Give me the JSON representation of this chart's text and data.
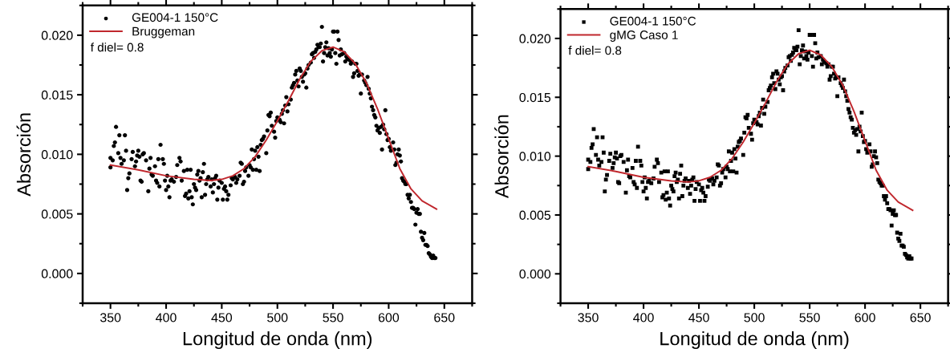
{
  "chart_data": [
    {
      "type": "scatter",
      "xlabel": "Longitud de onda (nm)",
      "ylabel": "Absorción",
      "legend": "top left",
      "grid": false,
      "xlim": [
        325,
        675
      ],
      "ylim": [
        -0.0025,
        0.0225
      ],
      "xticks": [
        {
          "value": 325,
          "label": null
        },
        350,
        {
          "value": 375,
          "label": null
        },
        400,
        {
          "value": 425,
          "label": null
        },
        450,
        {
          "value": 475,
          "label": null
        },
        500,
        {
          "value": 525,
          "label": null
        },
        550,
        {
          "value": 575,
          "label": null
        },
        600,
        {
          "value": 625,
          "label": null
        },
        650,
        {
          "value": 675,
          "label": null
        }
      ],
      "yticks": [
        {
          "value": -0.0025,
          "label": null
        },
        {
          "value": 0.0,
          "label": "0.000"
        },
        {
          "value": 0.0025,
          "label": null
        },
        {
          "value": 0.005,
          "label": "0.005"
        },
        {
          "value": 0.0075,
          "label": null
        },
        {
          "value": 0.01,
          "label": "0.010"
        },
        {
          "value": 0.0125,
          "label": null
        },
        {
          "value": 0.015,
          "label": "0.015"
        },
        {
          "value": 0.0175,
          "label": null
        },
        {
          "value": 0.02,
          "label": "0.020"
        },
        {
          "value": 0.0225,
          "label": null
        }
      ],
      "annotations": [
        "f diel= 0.8"
      ],
      "series": [
        {
          "name": "GE004-1 150°C",
          "marker": "circle",
          "color": "#000000",
          "x": [
            350,
            350,
            352,
            353,
            354,
            355,
            357,
            358,
            359,
            360,
            362,
            363,
            364,
            365,
            366,
            367,
            369,
            370,
            372,
            373,
            374,
            375,
            376,
            377,
            378,
            379,
            380,
            382,
            384,
            385,
            386,
            387,
            388,
            390,
            391,
            392,
            393,
            394,
            395,
            397,
            398,
            399,
            400,
            401,
            402,
            403,
            404,
            405,
            407,
            409,
            410,
            412,
            413,
            414,
            416,
            417,
            418,
            419,
            420,
            421,
            422,
            423,
            424,
            425,
            426,
            427,
            428,
            429,
            430,
            431,
            432,
            433,
            434,
            435,
            436,
            437,
            438,
            440,
            441,
            442,
            443,
            444,
            445,
            446,
            447,
            448,
            450,
            451,
            452,
            453,
            454,
            455,
            456,
            458,
            459,
            460,
            462,
            463,
            464,
            466,
            467,
            468,
            469,
            470,
            471,
            472,
            474,
            475,
            476,
            477,
            478,
            479,
            480,
            481,
            482,
            483,
            484,
            485,
            486,
            487,
            488,
            490,
            491,
            492,
            493,
            494,
            495,
            497,
            498,
            499,
            500,
            502,
            503,
            504,
            505,
            506,
            507,
            508,
            509,
            510,
            512,
            513,
            514,
            515,
            516,
            517,
            518,
            519,
            520,
            521,
            522,
            523,
            524,
            525,
            526,
            527,
            528,
            530,
            531,
            532,
            533,
            534,
            535,
            536,
            537,
            538,
            539,
            540,
            541,
            542,
            543,
            544,
            545,
            546,
            547,
            548,
            549,
            550,
            551,
            552,
            553,
            554,
            555,
            556,
            557,
            558,
            560,
            561,
            562,
            563,
            565,
            566,
            567,
            568,
            569,
            570,
            571,
            572,
            573,
            574,
            575,
            576,
            578,
            579,
            580,
            581,
            582,
            583,
            584,
            585,
            586,
            587,
            588,
            589,
            590,
            591,
            592,
            593,
            594,
            595,
            596,
            597,
            598,
            599,
            600,
            601,
            602,
            604,
            605,
            606,
            607,
            608,
            609,
            610,
            611,
            612,
            613,
            614,
            615,
            616,
            617,
            618,
            619,
            620,
            621,
            622,
            623,
            624,
            625,
            626,
            627,
            628,
            629,
            630,
            631,
            632,
            633,
            634,
            635,
            636,
            637,
            638,
            639,
            640,
            641,
            642
          ],
          "values": [
            0.0097,
            0.0089,
            0.0095,
            0.0107,
            0.011,
            0.0123,
            0.0101,
            0.0116,
            0.0097,
            0.0092,
            0.0095,
            0.0116,
            0.0103,
            0.007,
            0.008,
            0.0084,
            0.0096,
            0.0102,
            0.009,
            0.0094,
            0.0099,
            0.0103,
            0.0098,
            0.0078,
            0.0077,
            0.01,
            0.0101,
            0.0095,
            0.0069,
            0.0088,
            0.0097,
            0.0083,
            0.0082,
            0.009,
            0.0078,
            0.0076,
            0.0096,
            0.0073,
            0.0108,
            0.0096,
            0.0092,
            0.0078,
            0.007,
            0.0082,
            0.0073,
            0.0064,
            0.0078,
            0.0079,
            0.0077,
            0.0081,
            0.0091,
            0.0097,
            0.0094,
            0.0078,
            0.0086,
            0.0065,
            0.0067,
            0.0087,
            0.0063,
            0.0069,
            0.0087,
            0.0064,
            0.0058,
            0.0075,
            0.0072,
            0.007,
            0.0083,
            0.0086,
            0.0078,
            0.008,
            0.0064,
            0.0085,
            0.0092,
            0.0066,
            0.0075,
            0.0079,
            0.0081,
            0.0073,
            0.0079,
            0.0068,
            0.0075,
            0.008,
            0.0082,
            0.0062,
            0.0072,
            0.0078,
            0.0076,
            0.0062,
            0.0071,
            0.0073,
            0.0069,
            0.0062,
            0.0066,
            0.0074,
            0.008,
            0.0079,
            0.0081,
            0.0076,
            0.0079,
            0.0082,
            0.0093,
            0.0092,
            0.0075,
            0.0077,
            0.0086,
            0.0089,
            0.0082,
            0.0091,
            0.0089,
            0.0104,
            0.0087,
            0.0096,
            0.0103,
            0.0087,
            0.0106,
            0.0098,
            0.0086,
            0.0108,
            0.0112,
            0.0113,
            0.0115,
            0.0101,
            0.012,
            0.0133,
            0.0132,
            0.0135,
            0.0124,
            0.0119,
            0.0114,
            0.0128,
            0.0131,
            0.0129,
            0.0127,
            0.0134,
            0.0137,
            0.0126,
            0.0141,
            0.0148,
            0.0136,
            0.0142,
            0.0146,
            0.0156,
            0.0158,
            0.016,
            0.0167,
            0.017,
            0.0162,
            0.0157,
            0.0172,
            0.017,
            0.0165,
            0.0161,
            0.0167,
            0.0168,
            0.0156,
            0.0172,
            0.0175,
            0.0177,
            0.0184,
            0.0185,
            0.0181,
            0.0186,
            0.0188,
            0.0192,
            0.019,
            0.019,
            0.0193,
            0.0207,
            0.0178,
            0.0185,
            0.019,
            0.0194,
            0.0183,
            0.0189,
            0.0185,
            0.0182,
            0.0188,
            0.0203,
            0.0203,
            0.0185,
            0.0176,
            0.0203,
            0.0196,
            0.0183,
            0.0188,
            0.0184,
            0.0185,
            0.0178,
            0.0182,
            0.018,
            0.0179,
            0.0176,
            0.0178,
            0.0165,
            0.0168,
            0.0176,
            0.0176,
            0.017,
            0.0166,
            0.0167,
            0.0151,
            0.0167,
            0.0162,
            0.016,
            0.0158,
            0.0165,
            0.0155,
            0.0151,
            0.0147,
            0.014,
            0.0137,
            0.0133,
            0.0131,
            0.0124,
            0.012,
            0.0122,
            0.0118,
            0.0123,
            0.0104,
            0.0125,
            0.0121,
            0.0137,
            0.0117,
            0.0112,
            0.0113,
            0.0106,
            0.0103,
            0.011,
            0.0104,
            0.0091,
            0.0093,
            0.01,
            0.0104,
            0.0099,
            0.0094,
            0.008,
            0.0078,
            0.0077,
            0.0075,
            0.0075,
            0.0066,
            0.0063,
            0.0066,
            0.006,
            0.0055,
            0.0055,
            0.0054,
            0.0041,
            0.0051,
            0.0054,
            0.005,
            0.005,
            0.0035,
            0.003,
            0.0028,
            0.0034,
            0.0024,
            0.0024,
            0.0023,
            0.0017,
            0.0016,
            0.0014,
            0.0013,
            0.0015,
            0.0013,
            0.0013
          ]
        },
        {
          "name": "Bruggeman",
          "type": "line",
          "line_style": "solid",
          "color": "#c0272d",
          "x": [
            350,
            375,
            400,
            425,
            440,
            450,
            460,
            470,
            480,
            490,
            500,
            510,
            520,
            530,
            540,
            550,
            560,
            570,
            580,
            590,
            600,
            610,
            620,
            630,
            643
          ],
          "values": [
            0.0091,
            0.0087,
            0.0082,
            0.0079,
            0.0078,
            0.0079,
            0.0082,
            0.0088,
            0.0098,
            0.0112,
            0.0128,
            0.0145,
            0.0163,
            0.0178,
            0.0187,
            0.019,
            0.0186,
            0.0176,
            0.016,
            0.0138,
            0.0113,
            0.0088,
            0.0071,
            0.0061,
            0.0054
          ]
        }
      ]
    },
    {
      "type": "scatter",
      "xlabel": "Longitud de onda (nm)",
      "ylabel": "Absorción",
      "legend": "top left",
      "grid": false,
      "xlim": [
        325,
        675
      ],
      "ylim": [
        -0.0025,
        0.0225
      ],
      "xticks": [
        {
          "value": 325,
          "label": null
        },
        350,
        {
          "value": 375,
          "label": null
        },
        400,
        {
          "value": 425,
          "label": null
        },
        450,
        {
          "value": 475,
          "label": null
        },
        500,
        {
          "value": 525,
          "label": null
        },
        550,
        {
          "value": 575,
          "label": null
        },
        600,
        {
          "value": 625,
          "label": null
        },
        650,
        {
          "value": 675,
          "label": null
        }
      ],
      "yticks": [
        {
          "value": -0.0025,
          "label": null
        },
        {
          "value": 0.0,
          "label": "0.000"
        },
        {
          "value": 0.0025,
          "label": null
        },
        {
          "value": 0.005,
          "label": "0.005"
        },
        {
          "value": 0.0075,
          "label": null
        },
        {
          "value": 0.01,
          "label": "0.010"
        },
        {
          "value": 0.0125,
          "label": null
        },
        {
          "value": 0.015,
          "label": "0.015"
        },
        {
          "value": 0.0175,
          "label": null
        },
        {
          "value": 0.02,
          "label": "0.020"
        },
        {
          "value": 0.0225,
          "label": null
        }
      ],
      "annotations": [
        "f diel= 0.8"
      ],
      "series": [
        {
          "name": "GE004-1 150°C",
          "marker": "square",
          "color": "#000000",
          "x": [
            350,
            350,
            352,
            353,
            354,
            355,
            357,
            358,
            359,
            360,
            362,
            363,
            364,
            365,
            366,
            367,
            369,
            370,
            372,
            373,
            374,
            375,
            376,
            377,
            378,
            379,
            380,
            382,
            384,
            385,
            386,
            387,
            388,
            390,
            391,
            392,
            393,
            394,
            395,
            397,
            398,
            399,
            400,
            401,
            402,
            403,
            404,
            405,
            407,
            409,
            410,
            412,
            413,
            414,
            416,
            417,
            418,
            419,
            420,
            421,
            422,
            423,
            424,
            425,
            426,
            427,
            428,
            429,
            430,
            431,
            432,
            433,
            434,
            435,
            436,
            437,
            438,
            440,
            441,
            442,
            443,
            444,
            445,
            446,
            447,
            448,
            450,
            451,
            452,
            453,
            454,
            455,
            456,
            458,
            459,
            460,
            462,
            463,
            464,
            466,
            467,
            468,
            469,
            470,
            471,
            472,
            474,
            475,
            476,
            477,
            478,
            479,
            480,
            481,
            482,
            483,
            484,
            485,
            486,
            487,
            488,
            490,
            491,
            492,
            493,
            494,
            495,
            497,
            498,
            499,
            500,
            502,
            503,
            504,
            505,
            506,
            507,
            508,
            509,
            510,
            512,
            513,
            514,
            515,
            516,
            517,
            518,
            519,
            520,
            521,
            522,
            523,
            524,
            525,
            526,
            527,
            528,
            530,
            531,
            532,
            533,
            534,
            535,
            536,
            537,
            538,
            539,
            540,
            541,
            542,
            543,
            544,
            545,
            546,
            547,
            548,
            549,
            550,
            551,
            552,
            553,
            554,
            555,
            556,
            557,
            558,
            560,
            561,
            562,
            563,
            565,
            566,
            567,
            568,
            569,
            570,
            571,
            572,
            573,
            574,
            575,
            576,
            578,
            579,
            580,
            581,
            582,
            583,
            584,
            585,
            586,
            587,
            588,
            589,
            590,
            591,
            592,
            593,
            594,
            595,
            596,
            597,
            598,
            599,
            600,
            601,
            602,
            604,
            605,
            606,
            607,
            608,
            609,
            610,
            611,
            612,
            613,
            614,
            615,
            616,
            617,
            618,
            619,
            620,
            621,
            622,
            623,
            624,
            625,
            626,
            627,
            628,
            629,
            630,
            631,
            632,
            633,
            634,
            635,
            636,
            637,
            638,
            639,
            640,
            641,
            642
          ],
          "values": [
            0.0097,
            0.0089,
            0.0095,
            0.0107,
            0.011,
            0.0123,
            0.0101,
            0.0116,
            0.0097,
            0.0092,
            0.0095,
            0.0116,
            0.0103,
            0.007,
            0.008,
            0.0084,
            0.0096,
            0.0102,
            0.009,
            0.0094,
            0.0099,
            0.0103,
            0.0098,
            0.0078,
            0.0077,
            0.01,
            0.0101,
            0.0095,
            0.0069,
            0.0088,
            0.0097,
            0.0083,
            0.0082,
            0.009,
            0.0078,
            0.0076,
            0.0096,
            0.0073,
            0.0108,
            0.0096,
            0.0092,
            0.0078,
            0.007,
            0.0082,
            0.0073,
            0.0064,
            0.0078,
            0.0079,
            0.0077,
            0.0081,
            0.0091,
            0.0097,
            0.0094,
            0.0078,
            0.0086,
            0.0065,
            0.0067,
            0.0087,
            0.0063,
            0.0069,
            0.0087,
            0.0064,
            0.0058,
            0.0075,
            0.0072,
            0.007,
            0.0083,
            0.0086,
            0.0078,
            0.008,
            0.0064,
            0.0085,
            0.0092,
            0.0066,
            0.0075,
            0.0079,
            0.0081,
            0.0073,
            0.0079,
            0.0068,
            0.0075,
            0.008,
            0.0082,
            0.0062,
            0.0072,
            0.0078,
            0.0076,
            0.0062,
            0.0071,
            0.0073,
            0.0069,
            0.0062,
            0.0066,
            0.0074,
            0.008,
            0.0079,
            0.0081,
            0.0076,
            0.0079,
            0.0082,
            0.0093,
            0.0092,
            0.0075,
            0.0077,
            0.0086,
            0.0089,
            0.0082,
            0.0091,
            0.0089,
            0.0104,
            0.0087,
            0.0096,
            0.0103,
            0.0087,
            0.0106,
            0.0098,
            0.0086,
            0.0108,
            0.0112,
            0.0113,
            0.0115,
            0.0101,
            0.012,
            0.0133,
            0.0132,
            0.0135,
            0.0124,
            0.0119,
            0.0114,
            0.0128,
            0.0131,
            0.0129,
            0.0127,
            0.0134,
            0.0137,
            0.0126,
            0.0141,
            0.0148,
            0.0136,
            0.0142,
            0.0146,
            0.0156,
            0.0158,
            0.016,
            0.0167,
            0.017,
            0.0162,
            0.0157,
            0.0172,
            0.017,
            0.0165,
            0.0161,
            0.0167,
            0.0168,
            0.0156,
            0.0172,
            0.0175,
            0.0177,
            0.0184,
            0.0185,
            0.0181,
            0.0186,
            0.0188,
            0.0192,
            0.019,
            0.019,
            0.0193,
            0.0207,
            0.0178,
            0.0185,
            0.019,
            0.0194,
            0.0183,
            0.0189,
            0.0185,
            0.0182,
            0.0188,
            0.0203,
            0.0203,
            0.0185,
            0.0176,
            0.0203,
            0.0196,
            0.0183,
            0.0188,
            0.0184,
            0.0185,
            0.0178,
            0.0182,
            0.018,
            0.0179,
            0.0176,
            0.0178,
            0.0165,
            0.0168,
            0.0176,
            0.0176,
            0.017,
            0.0166,
            0.0167,
            0.0151,
            0.0167,
            0.0162,
            0.016,
            0.0158,
            0.0165,
            0.0155,
            0.0151,
            0.0147,
            0.014,
            0.0137,
            0.0133,
            0.0131,
            0.0124,
            0.012,
            0.0122,
            0.0118,
            0.0123,
            0.0104,
            0.0125,
            0.0121,
            0.0137,
            0.0117,
            0.0112,
            0.0113,
            0.0106,
            0.0103,
            0.011,
            0.0104,
            0.0091,
            0.0093,
            0.01,
            0.0104,
            0.0099,
            0.0094,
            0.008,
            0.0078,
            0.0077,
            0.0075,
            0.0075,
            0.0066,
            0.0063,
            0.0066,
            0.006,
            0.0055,
            0.0055,
            0.0054,
            0.0041,
            0.0051,
            0.0054,
            0.005,
            0.005,
            0.0035,
            0.003,
            0.0028,
            0.0034,
            0.0024,
            0.0024,
            0.0023,
            0.0017,
            0.0016,
            0.0014,
            0.0013,
            0.0015,
            0.0013,
            0.0013
          ]
        },
        {
          "name": "gMG Caso 1",
          "type": "line",
          "line_style": "solid",
          "color": "#c0272d",
          "x": [
            350,
            375,
            400,
            425,
            440,
            450,
            460,
            470,
            480,
            490,
            500,
            510,
            520,
            530,
            540,
            550,
            560,
            570,
            580,
            590,
            600,
            610,
            620,
            630,
            643
          ],
          "values": [
            0.0091,
            0.0087,
            0.0082,
            0.0079,
            0.0078,
            0.0079,
            0.0082,
            0.0088,
            0.0098,
            0.0112,
            0.0128,
            0.0145,
            0.0163,
            0.0178,
            0.0187,
            0.019,
            0.0186,
            0.0176,
            0.016,
            0.0138,
            0.0113,
            0.0088,
            0.0071,
            0.0061,
            0.0054
          ]
        }
      ]
    }
  ]
}
